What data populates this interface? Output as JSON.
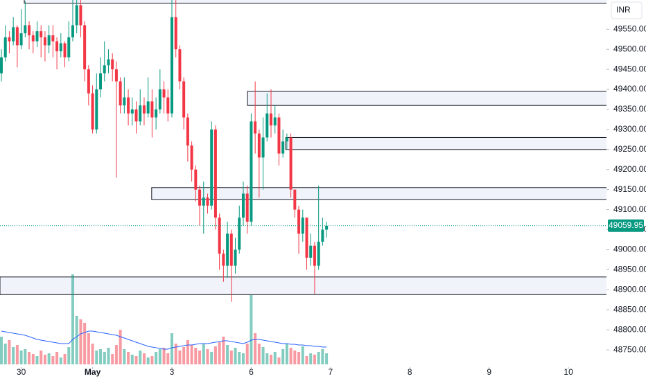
{
  "chart_data": {
    "type": "candlestick",
    "currency": "INR",
    "x": [
      0,
      1,
      2,
      3,
      4,
      5,
      6,
      7,
      8,
      9,
      10,
      11,
      12,
      13,
      14,
      15,
      16,
      17,
      18,
      19,
      20,
      21,
      22,
      23,
      24,
      25,
      26,
      27,
      28,
      29,
      30,
      31,
      32,
      33,
      34,
      35,
      36,
      37,
      38,
      39,
      40,
      41,
      42,
      43,
      44,
      45,
      46,
      47,
      48,
      49,
      50,
      51,
      52,
      53,
      54,
      55,
      56,
      57,
      58,
      59,
      60,
      61,
      62,
      63,
      64,
      65,
      66,
      67,
      68,
      69,
      70,
      71,
      72,
      73,
      74,
      75,
      76,
      77,
      78,
      79,
      80,
      81,
      82
    ],
    "open": [
      49440,
      49480,
      49530,
      49520,
      49555,
      49510,
      49540,
      49560,
      49535,
      49520,
      49545,
      49530,
      49510,
      49535,
      49520,
      49495,
      49515,
      49480,
      49530,
      49560,
      49610,
      49560,
      49450,
      49390,
      49300,
      49400,
      49440,
      49460,
      49475,
      49450,
      49420,
      49360,
      49380,
      49340,
      49350,
      49320,
      49360,
      49340,
      49370,
      49330,
      49350,
      49400,
      49380,
      49340,
      49580,
      49500,
      49420,
      49330,
      49260,
      49200,
      49150,
      49110,
      49130,
      49110,
      49300,
      49080,
      48990,
      48960,
      49040,
      48960,
      49000,
      49080,
      49140,
      49070,
      49320,
      49290,
      49230,
      49280,
      49340,
      49310,
      49330,
      49240,
      49270,
      49280,
      49150,
      49100,
      49040,
      49080,
      48980,
      49010,
      48960,
      49020,
      49050
    ],
    "high": [
      49500,
      49560,
      49545,
      49580,
      49560,
      49600,
      49620,
      49570,
      49545,
      49570,
      49560,
      49545,
      49560,
      49560,
      49530,
      49540,
      49520,
      49570,
      49640,
      49640,
      49630,
      49570,
      49460,
      49410,
      49440,
      49480,
      49520,
      49500,
      49490,
      49470,
      49430,
      49430,
      49400,
      49380,
      49370,
      49400,
      49380,
      49430,
      49400,
      49380,
      49450,
      49420,
      49400,
      49640,
      49630,
      49510,
      49430,
      49340,
      49270,
      49210,
      49160,
      49170,
      49140,
      49320,
      49310,
      49090,
      49000,
      49070,
      49050,
      49030,
      49110,
      49170,
      49160,
      49340,
      49420,
      49300,
      49330,
      49390,
      49400,
      49360,
      49340,
      49300,
      49290,
      49290,
      49150,
      49110,
      49100,
      49080,
      49040,
      49020,
      49160,
      49080,
      49070
    ],
    "low": [
      49420,
      49470,
      49490,
      49510,
      49455,
      49500,
      49530,
      49500,
      49490,
      49505,
      49480,
      49470,
      49490,
      49480,
      49450,
      49480,
      49455,
      49470,
      49520,
      49540,
      49530,
      49420,
      49360,
      49290,
      49290,
      49380,
      49420,
      49440,
      49420,
      49180,
      49340,
      49340,
      49310,
      49310,
      49290,
      49310,
      49310,
      49330,
      49280,
      49300,
      49340,
      49340,
      49320,
      49330,
      49480,
      49400,
      49300,
      49220,
      49170,
      49120,
      49060,
      49040,
      49090,
      49100,
      49050,
      48950,
      48920,
      48930,
      48870,
      48940,
      48990,
      49060,
      49040,
      49060,
      49240,
      49130,
      49150,
      49270,
      49280,
      49290,
      49210,
      49230,
      49250,
      49130,
      49080,
      48990,
      49020,
      48950,
      48960,
      48890,
      48950,
      49010,
      49030
    ],
    "close": [
      49480,
      49530,
      49520,
      49555,
      49510,
      49540,
      49560,
      49535,
      49520,
      49545,
      49530,
      49510,
      49535,
      49520,
      49495,
      49515,
      49480,
      49530,
      49560,
      49610,
      49560,
      49450,
      49390,
      49300,
      49400,
      49440,
      49460,
      49475,
      49450,
      49420,
      49360,
      49380,
      49340,
      49350,
      49320,
      49360,
      49340,
      49370,
      49330,
      49350,
      49400,
      49380,
      49340,
      49580,
      49500,
      49420,
      49330,
      49260,
      49200,
      49150,
      49110,
      49130,
      49110,
      49300,
      49080,
      48990,
      48960,
      49040,
      48960,
      49000,
      49080,
      49140,
      49070,
      49320,
      49290,
      49230,
      49280,
      49340,
      49310,
      49330,
      49240,
      49270,
      49280,
      49150,
      49100,
      49040,
      49080,
      48980,
      49010,
      48960,
      49020,
      49050,
      49059.95
    ],
    "volume": [
      40,
      30,
      35,
      25,
      28,
      20,
      22,
      18,
      15,
      12,
      20,
      14,
      16,
      12,
      18,
      10,
      15,
      25,
      130,
      70,
      65,
      60,
      45,
      30,
      20,
      22,
      18,
      24,
      15,
      28,
      50,
      22,
      18,
      14,
      12,
      20,
      16,
      10,
      12,
      18,
      22,
      24,
      16,
      45,
      30,
      20,
      25,
      35,
      28,
      24,
      20,
      30,
      22,
      18,
      26,
      32,
      40,
      28,
      20,
      24,
      18,
      16,
      30,
      100,
      45,
      30,
      25,
      16,
      14,
      18,
      10,
      22,
      30,
      24,
      20,
      18,
      26,
      12,
      16,
      14,
      18,
      22,
      16
    ],
    "volume_ma": [
      48,
      47,
      46,
      45,
      44,
      43,
      42,
      40,
      38,
      36,
      35,
      34,
      33,
      32,
      31,
      30,
      30,
      30,
      36,
      40,
      44,
      46,
      48,
      48,
      47,
      46,
      45,
      44,
      43,
      42,
      40,
      38,
      36,
      34,
      32,
      30,
      28,
      26,
      25,
      24,
      23,
      22,
      22,
      24,
      25,
      26,
      27,
      28,
      28,
      29,
      30,
      30,
      30,
      31,
      32,
      33,
      34,
      34,
      33,
      32,
      31,
      30,
      32,
      35,
      36,
      36,
      35,
      34,
      33,
      32,
      31,
      30,
      30,
      29,
      29,
      28,
      28,
      27,
      27,
      26,
      26,
      25,
      25
    ],
    "last_price": 49059.95,
    "zones": [
      {
        "x": 5.77,
        "low": 49615,
        "high": 49640
      },
      {
        "x": 62.06,
        "low": 49360,
        "high": 49395
      },
      {
        "x": 71.7,
        "low": 49250,
        "high": 49280
      },
      {
        "x": 37.9,
        "low": 49125,
        "high": 49155
      },
      {
        "x": -0.35,
        "low": 48888,
        "high": 48932
      }
    ],
    "xlim": [
      -0.35,
      152.6
    ],
    "xticks": [
      {
        "value": 5,
        "label": "30"
      },
      {
        "value": 23,
        "label": "May"
      },
      {
        "value": 43,
        "label": "3"
      },
      {
        "value": 63,
        "label": "6"
      },
      {
        "value": 83,
        "label": "7"
      },
      {
        "value": 103,
        "label": "8"
      },
      {
        "value": 123,
        "label": "9"
      },
      {
        "value": 143,
        "label": "10"
      }
    ],
    "ylim": [
      48707,
      49623
    ],
    "yticks": [
      {
        "value": 48750,
        "label": "48750.00"
      },
      {
        "value": 48800,
        "label": "48800.00"
      },
      {
        "value": 48850,
        "label": "48850.00"
      },
      {
        "value": 48900,
        "label": "48900.00"
      },
      {
        "value": 48950,
        "label": "48950.00"
      },
      {
        "value": 49000,
        "label": "49000.00"
      },
      {
        "value": 49050,
        "label": "49050.00"
      },
      {
        "value": 49100,
        "label": "49100.00"
      },
      {
        "value": 49150,
        "label": "49150.00"
      },
      {
        "value": 49200,
        "label": "49200.00"
      },
      {
        "value": 49250,
        "label": "49250.00"
      },
      {
        "value": 49300,
        "label": "49300.00"
      },
      {
        "value": 49350,
        "label": "49350.00"
      },
      {
        "value": 49400,
        "label": "49400.00"
      },
      {
        "value": 49450,
        "label": "49450.00"
      },
      {
        "value": 49500,
        "label": "49500.00"
      },
      {
        "value": 49550,
        "label": "49550.00"
      }
    ],
    "up_color": "#089981",
    "down_color": "#f23645",
    "volume_ma_color": "#2962ff"
  }
}
